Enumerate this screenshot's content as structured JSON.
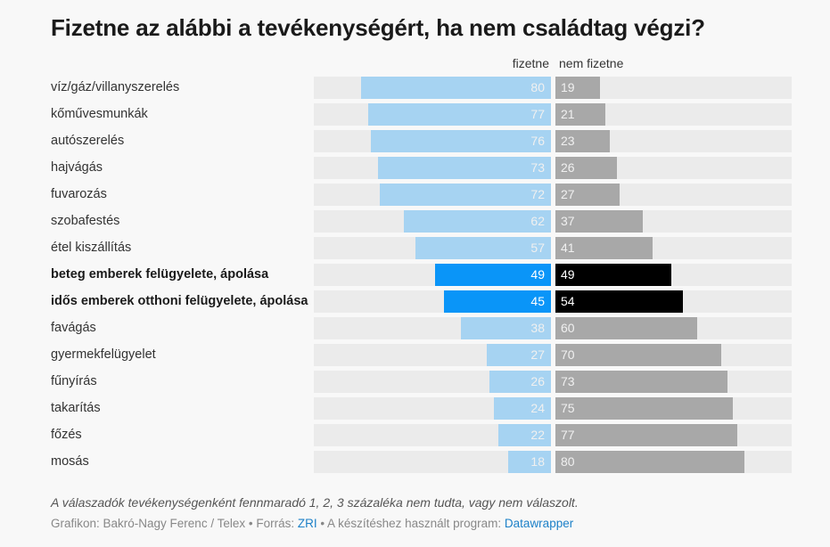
{
  "header": {
    "title": "Fizetne az alábbi a tevékenységért, ha nem családtag végzi?"
  },
  "chart_data": {
    "type": "bar",
    "subtype": "diverging-horizontal-bar",
    "title": "Fizetne az alábbi a tevékenységért, ha nem családtag végzi?",
    "xlim": [
      0,
      100
    ],
    "unit": "%",
    "legend": [
      "fizetne",
      "nem fizetne"
    ],
    "categories": [
      "víz/gáz/villanyszerelés",
      "kőművesmunkák",
      "autószerelés",
      "hajvágás",
      "fuvarozás",
      "szobafestés",
      "étel kiszállítás",
      "beteg emberek felügyelete, ápolása",
      "idős emberek otthoni felügyelete, ápolása",
      "favágás",
      "gyermekfelügyelet",
      "fűnyírás",
      "takarítás",
      "főzés",
      "mosás"
    ],
    "highlighted": [
      "beteg emberek felügyelete, ápolása",
      "idős emberek otthoni felügyelete, ápolása"
    ],
    "series": [
      {
        "name": "fizetne",
        "values": [
          80,
          77,
          76,
          73,
          72,
          62,
          57,
          49,
          45,
          38,
          27,
          26,
          24,
          22,
          18
        ]
      },
      {
        "name": "nem fizetne",
        "values": [
          19,
          21,
          23,
          26,
          27,
          37,
          41,
          49,
          54,
          60,
          70,
          73,
          75,
          77,
          80
        ]
      }
    ],
    "labels_left": [
      "80",
      "77",
      "76",
      "73",
      "72",
      "62",
      "57",
      "49",
      "45",
      "38",
      "27",
      "26",
      "24",
      "22",
      "18"
    ],
    "labels_right": [
      "19",
      "21",
      "23",
      "26",
      "27",
      "37",
      "41",
      "49",
      "54",
      "60",
      "70",
      "73",
      "75",
      "77",
      "80"
    ]
  },
  "colors": {
    "left_bar": "#a6d3f2",
    "left_bar_highlight": "#0a95f8",
    "right_bar": "#a8a8a8",
    "right_bar_highlight": "#000000",
    "track": "#ebebeb",
    "label_on_light": "#f0f0f0",
    "label_on_highlight": "#ffffff"
  },
  "footer": {
    "notes": "A válaszadók tevékenységenként fennmaradó 1, 2, 3 százaléka nem tudta, vagy nem válaszolt.",
    "byline_prefix": "Grafikon: Bakró-Nagy Ferenc / Telex • Forrás: ",
    "source_link": "ZRI",
    "byline_middle": " • A készítéshez használt program: ",
    "tool_link": "Datawrapper"
  }
}
